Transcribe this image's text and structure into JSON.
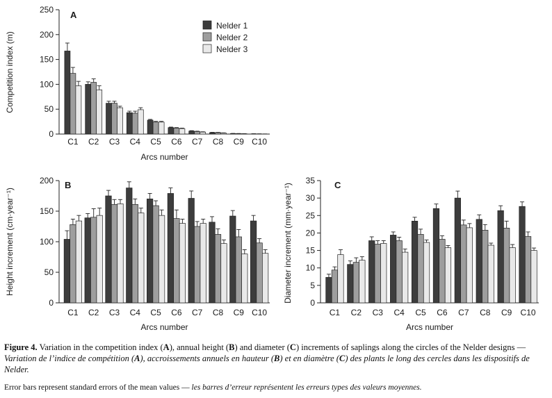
{
  "chart_data": [
    {
      "panel": "A",
      "type": "bar",
      "ylabel": "Competition index (m)",
      "xlabel": "Arcs number",
      "ylim": [
        0,
        250
      ],
      "yticks": [
        0,
        50,
        100,
        150,
        200,
        250
      ],
      "categories": [
        "C1",
        "C2",
        "C3",
        "C4",
        "C5",
        "C6",
        "C7",
        "C8",
        "C9",
        "C10"
      ],
      "legend_position": "top-right",
      "series": [
        {
          "name": "Nelder 1",
          "color": "#3d3d3d",
          "values": [
            167,
            100,
            62,
            43,
            28,
            13,
            6,
            3,
            1,
            0.5
          ],
          "errors": [
            16,
            5,
            4,
            3,
            1.5,
            1,
            0.8,
            0.5,
            0.3,
            0.2
          ]
        },
        {
          "name": "Nelder 2",
          "color": "#9e9e9e",
          "values": [
            122,
            104,
            62,
            42,
            24,
            12,
            5,
            3,
            0.8,
            0.3
          ],
          "errors": [
            12,
            7,
            4,
            4,
            1.5,
            1,
            0.8,
            0.5,
            0.3,
            0.2
          ]
        },
        {
          "name": "Nelder 3",
          "color": "#e9e9e9",
          "values": [
            97,
            89,
            53,
            49,
            24,
            11,
            4,
            2,
            0.6,
            0.2
          ],
          "errors": [
            9,
            8,
            3,
            4,
            1.5,
            1,
            0.6,
            0.4,
            0.2,
            0.1
          ]
        }
      ]
    },
    {
      "panel": "B",
      "type": "bar",
      "ylabel": "Height increment (cm·year⁻¹)",
      "xlabel": "Arcs number",
      "ylim": [
        0,
        200
      ],
      "yticks": [
        0,
        50,
        100,
        150,
        200
      ],
      "categories": [
        "C1",
        "C2",
        "C3",
        "C4",
        "C5",
        "C6",
        "C7",
        "C8",
        "C9",
        "C10"
      ],
      "series": [
        {
          "name": "Nelder 1",
          "color": "#3d3d3d",
          "values": [
            104,
            139,
            175,
            188,
            170,
            179,
            171,
            132,
            142,
            134
          ],
          "errors": [
            14,
            7,
            9,
            10,
            9,
            9,
            12,
            9,
            9,
            9
          ]
        },
        {
          "name": "Nelder 2",
          "color": "#9e9e9e",
          "values": [
            128,
            140,
            161,
            161,
            159,
            138,
            125,
            112,
            108,
            98
          ],
          "errors": [
            9,
            14,
            8,
            9,
            8,
            14,
            8,
            9,
            12,
            7
          ]
        },
        {
          "name": "Nelder 3",
          "color": "#e9e9e9",
          "values": [
            134,
            143,
            162,
            147,
            143,
            130,
            130,
            97,
            80,
            81
          ],
          "errors": [
            9,
            12,
            7,
            8,
            9,
            7,
            7,
            6,
            7,
            6
          ]
        }
      ]
    },
    {
      "panel": "C",
      "type": "bar",
      "ylabel": "Diameter increment (mm·year⁻¹)",
      "xlabel": "Arcs number",
      "ylim": [
        0,
        35
      ],
      "yticks": [
        0,
        5,
        10,
        15,
        20,
        25,
        30,
        35
      ],
      "categories": [
        "C1",
        "C2",
        "C3",
        "C4",
        "C5",
        "C6",
        "C7",
        "C8",
        "C9",
        "C10"
      ],
      "series": [
        {
          "name": "Nelder 1",
          "color": "#3d3d3d",
          "values": [
            7.3,
            11.0,
            17.8,
            19.4,
            23.4,
            27.0,
            30.0,
            23.9,
            26.4,
            27.6
          ],
          "errors": [
            0.9,
            1.0,
            1.1,
            0.9,
            1.1,
            1.3,
            2.0,
            1.3,
            1.4,
            1.3
          ]
        },
        {
          "name": "Nelder 2",
          "color": "#9e9e9e",
          "values": [
            9.4,
            11.6,
            16.8,
            17.8,
            19.6,
            18.2,
            22.3,
            20.8,
            21.4,
            19.0
          ],
          "errors": [
            0.9,
            1.3,
            1.0,
            1.0,
            1.5,
            1.0,
            1.4,
            1.6,
            2.0,
            1.3
          ]
        },
        {
          "name": "Nelder 3",
          "color": "#e9e9e9",
          "values": [
            13.8,
            12.2,
            17.0,
            14.5,
            17.3,
            15.8,
            21.5,
            16.5,
            15.8,
            15.0
          ],
          "errors": [
            1.4,
            1.0,
            0.8,
            0.9,
            0.7,
            0.6,
            1.2,
            0.6,
            0.9,
            0.7
          ]
        }
      ]
    }
  ],
  "caption": {
    "figure_label": "Figure 4.",
    "english_1": " Variation in the competition index (",
    "a": "A",
    "english_2": "), annual height (",
    "b": "B",
    "english_3": ") and diameter (",
    "c": "C",
    "english_4": ") increments of saplings along the circles of the Nelder designs — ",
    "french_1": "Variation de l’indice de compétition (",
    "fa": "A",
    "french_2": "), accroissements annuels en hauteur (",
    "fb": "B",
    "french_3": ") et en diamètre (",
    "fc": "C",
    "french_4": ") des plants le long des cercles dans les dispositifs de Nelder."
  },
  "note": {
    "english": "Error bars represent standard errors of the mean values — ",
    "french": "les barres d’erreur représentent les erreurs types des valeurs moyennes."
  }
}
